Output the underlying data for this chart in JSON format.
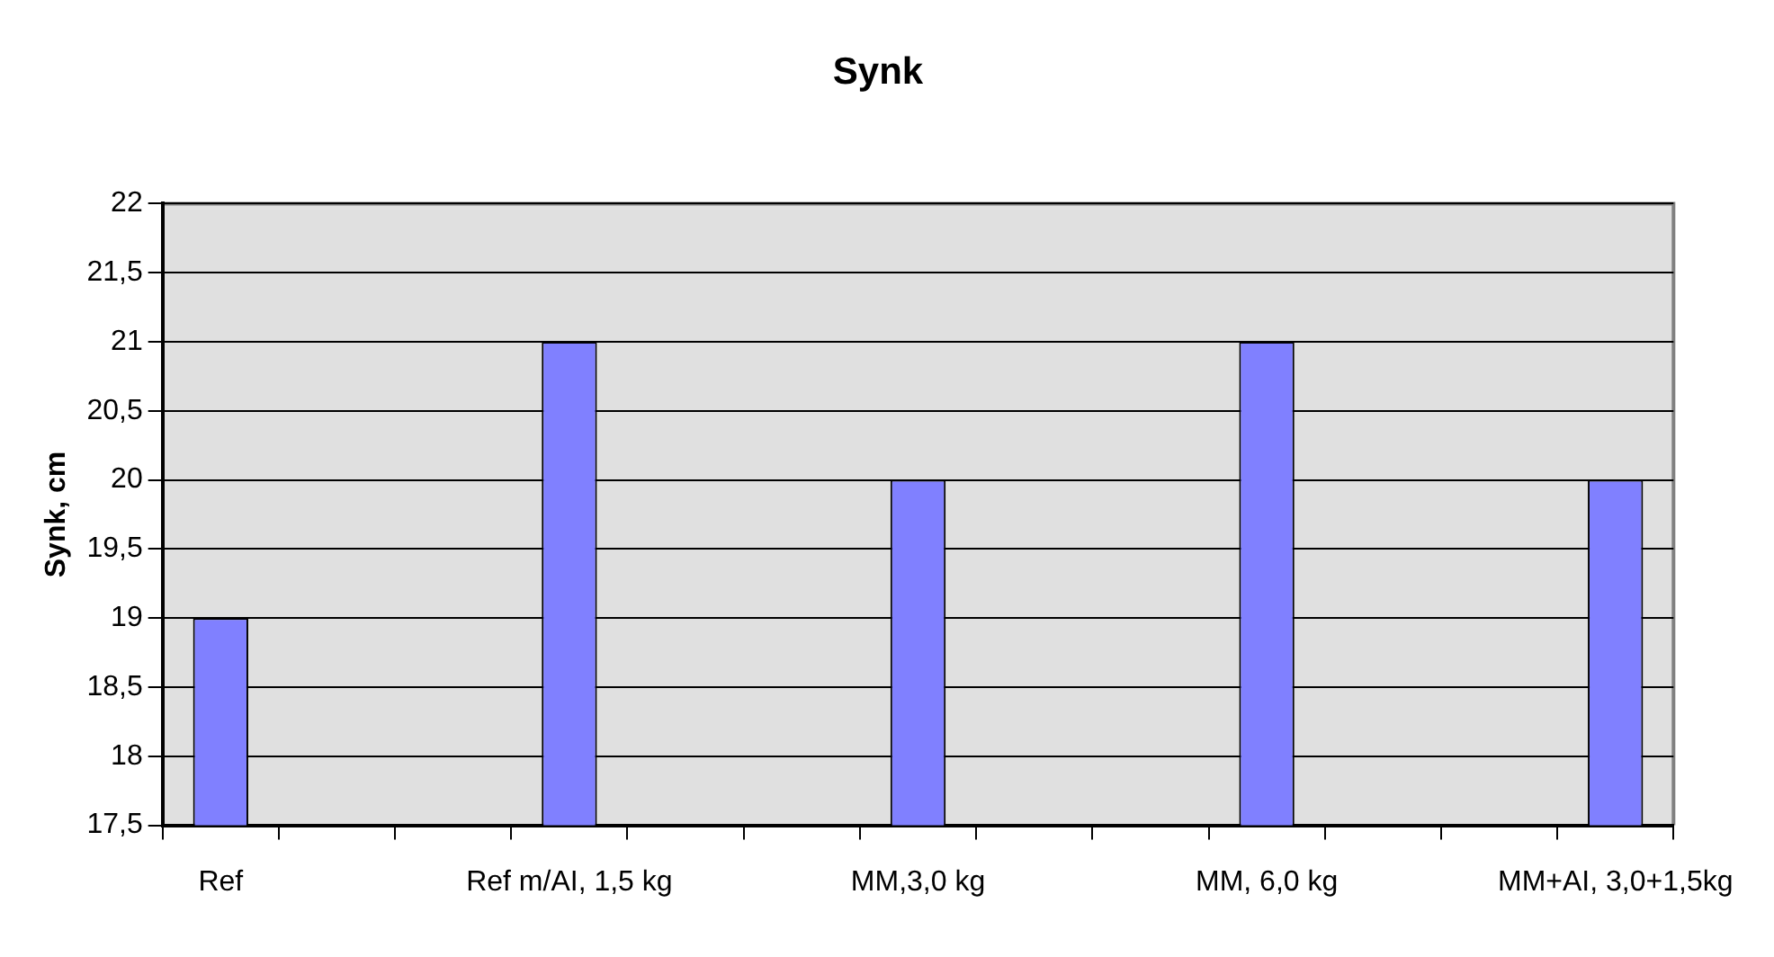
{
  "chart_data": {
    "type": "bar",
    "title": "Synk",
    "ylabel": "Synk, cm",
    "categories": [
      "Ref",
      null,
      null,
      "Ref m/AI, 1,5 kg",
      null,
      null,
      "MM,3,0 kg",
      null,
      null,
      "MM, 6,0 kg",
      null,
      null,
      "MM+AI, 3,0+1,5kg"
    ],
    "values": [
      19,
      null,
      null,
      21,
      null,
      null,
      20,
      null,
      null,
      21,
      null,
      null,
      20
    ],
    "color": "#8080ff",
    "ylim": [
      17.5,
      22
    ],
    "yticks": [
      {
        "value": 17.5,
        "label": "17,5"
      },
      18,
      {
        "value": 18.5,
        "label": "18,5"
      },
      19,
      {
        "value": 19.5,
        "label": "19,5"
      },
      20,
      {
        "value": 20.5,
        "label": "20,5"
      },
      21,
      {
        "value": 21.5,
        "label": "21,5"
      },
      22
    ],
    "grid": "y",
    "legend": false
  }
}
